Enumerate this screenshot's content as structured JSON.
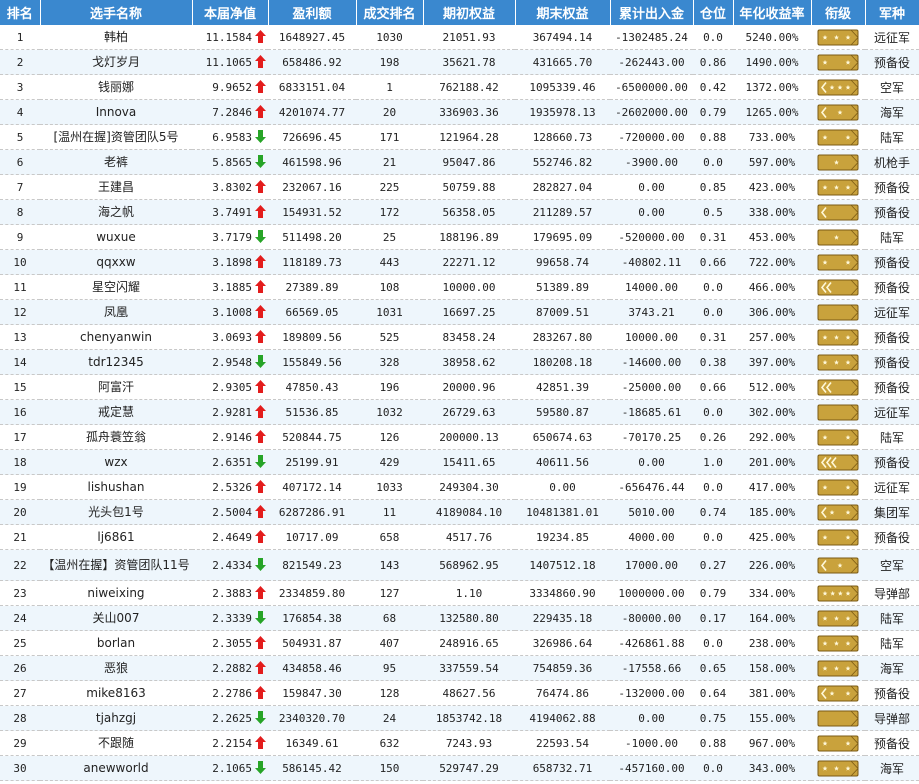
{
  "colors": {
    "header_bg": "#3a88cf",
    "up": "#e31c1c",
    "down": "#27a427",
    "badge_bg": "#c9a23c"
  },
  "header": [
    "排名",
    "选手名称",
    "本届净值",
    "盈利额",
    "成交排名",
    "期初权益",
    "期末权益",
    "累计出入金",
    "仓位",
    "年化收益率",
    "衔级",
    "军种"
  ],
  "rows": [
    {
      "rank": "1",
      "name": "韩柏",
      "nav": "11.1584",
      "trend": "up",
      "profit": "1648927.45",
      "trade_rank": "1030",
      "start": "21051.93",
      "end": "367494.14",
      "flow": "-1302485.24",
      "pos": "0.0",
      "annual": "5240.00%",
      "badge": "three-star",
      "branch": "远征军"
    },
    {
      "rank": "2",
      "name": "戈灯岁月",
      "nav": "11.1065",
      "trend": "up",
      "profit": "658486.92",
      "trade_rank": "198",
      "start": "35621.78",
      "end": "431665.70",
      "flow": "-262443.00",
      "pos": "0.86",
      "annual": "1490.00%",
      "badge": "two-star",
      "branch": "预备役"
    },
    {
      "rank": "3",
      "name": "钱丽娜",
      "nav": "9.9652",
      "trend": "up",
      "profit": "6833151.04",
      "trade_rank": "1",
      "start": "762188.42",
      "end": "1095339.46",
      "flow": "-6500000.00",
      "pos": "0.42",
      "annual": "1372.00%",
      "badge": "chevron-three-star",
      "branch": "空军"
    },
    {
      "rank": "4",
      "name": "Innova",
      "nav": "7.2846",
      "trend": "up",
      "profit": "4201074.77",
      "trade_rank": "20",
      "start": "336903.36",
      "end": "1935978.13",
      "flow": "-2602000.00",
      "pos": "0.79",
      "annual": "1265.00%",
      "badge": "chevron-one-star",
      "branch": "海军"
    },
    {
      "rank": "5",
      "name": "[温州在握]资管团队5号",
      "nav": "6.9583",
      "trend": "down",
      "profit": "726696.45",
      "trade_rank": "171",
      "start": "121964.28",
      "end": "128660.73",
      "flow": "-720000.00",
      "pos": "0.88",
      "annual": "733.00%",
      "badge": "two-star",
      "branch": "陆军"
    },
    {
      "rank": "6",
      "name": "老裤",
      "nav": "5.8565",
      "trend": "down",
      "profit": "461598.96",
      "trade_rank": "21",
      "start": "95047.86",
      "end": "552746.82",
      "flow": "-3900.00",
      "pos": "0.0",
      "annual": "597.00%",
      "badge": "one-star",
      "branch": "机枪手"
    },
    {
      "rank": "7",
      "name": "王建昌",
      "nav": "3.8302",
      "trend": "up",
      "profit": "232067.16",
      "trade_rank": "225",
      "start": "50759.88",
      "end": "282827.04",
      "flow": "0.00",
      "pos": "0.85",
      "annual": "423.00%",
      "badge": "three-star",
      "branch": "预备役"
    },
    {
      "rank": "8",
      "name": "海之帆",
      "nav": "3.7491",
      "trend": "up",
      "profit": "154931.52",
      "trade_rank": "172",
      "start": "56358.05",
      "end": "211289.57",
      "flow": "0.00",
      "pos": "0.5",
      "annual": "338.00%",
      "badge": "chevron",
      "branch": "预备役"
    },
    {
      "rank": "9",
      "name": "wuxue",
      "nav": "3.7179",
      "trend": "down",
      "profit": "511498.20",
      "trade_rank": "25",
      "start": "188196.89",
      "end": "179695.09",
      "flow": "-520000.00",
      "pos": "0.31",
      "annual": "453.00%",
      "badge": "one-star",
      "branch": "陆军"
    },
    {
      "rank": "10",
      "name": "qqxxw",
      "nav": "3.1898",
      "trend": "up",
      "profit": "118189.73",
      "trade_rank": "443",
      "start": "22271.12",
      "end": "99658.74",
      "flow": "-40802.11",
      "pos": "0.66",
      "annual": "722.00%",
      "badge": "two-star",
      "branch": "预备役"
    },
    {
      "rank": "11",
      "name": "星空闪耀",
      "nav": "3.1885",
      "trend": "up",
      "profit": "27389.89",
      "trade_rank": "108",
      "start": "10000.00",
      "end": "51389.89",
      "flow": "14000.00",
      "pos": "0.0",
      "annual": "466.00%",
      "badge": "double-chevron",
      "branch": "预备役"
    },
    {
      "rank": "12",
      "name": "凤凰",
      "nav": "3.1008",
      "trend": "up",
      "profit": "66569.05",
      "trade_rank": "1031",
      "start": "16697.25",
      "end": "87009.51",
      "flow": "3743.21",
      "pos": "0.0",
      "annual": "306.00%",
      "badge": "plain",
      "branch": "远征军"
    },
    {
      "rank": "13",
      "name": "chenyanwin",
      "nav": "3.0693",
      "trend": "up",
      "profit": "189809.56",
      "trade_rank": "525",
      "start": "83458.24",
      "end": "283267.80",
      "flow": "10000.00",
      "pos": "0.31",
      "annual": "257.00%",
      "badge": "three-star",
      "branch": "预备役"
    },
    {
      "rank": "14",
      "name": "tdr12345",
      "nav": "2.9548",
      "trend": "down",
      "profit": "155849.56",
      "trade_rank": "328",
      "start": "38958.62",
      "end": "180208.18",
      "flow": "-14600.00",
      "pos": "0.38",
      "annual": "397.00%",
      "badge": "three-star",
      "branch": "预备役"
    },
    {
      "rank": "15",
      "name": "阿富汗",
      "nav": "2.9305",
      "trend": "up",
      "profit": "47850.43",
      "trade_rank": "196",
      "start": "20000.96",
      "end": "42851.39",
      "flow": "-25000.00",
      "pos": "0.66",
      "annual": "512.00%",
      "badge": "double-chevron",
      "branch": "预备役"
    },
    {
      "rank": "16",
      "name": "戒定慧",
      "nav": "2.9281",
      "trend": "up",
      "profit": "51536.85",
      "trade_rank": "1032",
      "start": "26729.63",
      "end": "59580.87",
      "flow": "-18685.61",
      "pos": "0.0",
      "annual": "302.00%",
      "badge": "plain",
      "branch": "远征军"
    },
    {
      "rank": "17",
      "name": "孤舟蓑笠翁",
      "nav": "2.9146",
      "trend": "up",
      "profit": "520844.75",
      "trade_rank": "126",
      "start": "200000.13",
      "end": "650674.63",
      "flow": "-70170.25",
      "pos": "0.26",
      "annual": "292.00%",
      "badge": "two-star",
      "branch": "陆军"
    },
    {
      "rank": "18",
      "name": "wzx",
      "nav": "2.6351",
      "trend": "down",
      "profit": "25199.91",
      "trade_rank": "429",
      "start": "15411.65",
      "end": "40611.56",
      "flow": "0.00",
      "pos": "1.0",
      "annual": "201.00%",
      "badge": "triple-chevron",
      "branch": "预备役"
    },
    {
      "rank": "19",
      "name": "lishushan",
      "nav": "2.5326",
      "trend": "up",
      "profit": "407172.14",
      "trade_rank": "1033",
      "start": "249304.30",
      "end": "0.00",
      "flow": "-656476.44",
      "pos": "0.0",
      "annual": "417.00%",
      "badge": "two-star",
      "branch": "远征军"
    },
    {
      "rank": "20",
      "name": "光头包1号",
      "nav": "2.5004",
      "trend": "up",
      "profit": "6287286.91",
      "trade_rank": "11",
      "start": "4189084.10",
      "end": "10481381.01",
      "flow": "5010.00",
      "pos": "0.74",
      "annual": "185.00%",
      "badge": "chevron-two-star",
      "branch": "集团军"
    },
    {
      "rank": "21",
      "name": "lj6861",
      "nav": "2.4649",
      "trend": "up",
      "profit": "10717.09",
      "trade_rank": "658",
      "start": "4517.76",
      "end": "19234.85",
      "flow": "4000.00",
      "pos": "0.0",
      "annual": "425.00%",
      "badge": "two-star",
      "branch": "预备役"
    },
    {
      "rank": "22",
      "name": "【温州在握】资管团队11号",
      "nav": "2.4334",
      "trend": "down",
      "profit": "821549.23",
      "trade_rank": "143",
      "start": "568962.95",
      "end": "1407512.18",
      "flow": "17000.00",
      "pos": "0.27",
      "annual": "226.00%",
      "badge": "chevron-one-star",
      "branch": "空军"
    },
    {
      "rank": "23",
      "name": "niweixing",
      "nav": "2.3883",
      "trend": "up",
      "profit": "2334859.80",
      "trade_rank": "127",
      "start": "1.10",
      "end": "3334860.90",
      "flow": "1000000.00",
      "pos": "0.79",
      "annual": "334.00%",
      "badge": "four-star",
      "branch": "导弹部"
    },
    {
      "rank": "24",
      "name": "关山007",
      "nav": "2.3339",
      "trend": "down",
      "profit": "176854.38",
      "trade_rank": "68",
      "start": "132580.80",
      "end": "229435.18",
      "flow": "-80000.00",
      "pos": "0.17",
      "annual": "164.00%",
      "badge": "three-star",
      "branch": "陆军"
    },
    {
      "rank": "25",
      "name": "borlan",
      "nav": "2.3055",
      "trend": "up",
      "profit": "504931.87",
      "trade_rank": "407",
      "start": "248916.65",
      "end": "326986.64",
      "flow": "-426861.88",
      "pos": "0.0",
      "annual": "238.00%",
      "badge": "three-star",
      "branch": "陆军"
    },
    {
      "rank": "26",
      "name": "恶狼",
      "nav": "2.2882",
      "trend": "up",
      "profit": "434858.46",
      "trade_rank": "95",
      "start": "337559.54",
      "end": "754859.36",
      "flow": "-17558.66",
      "pos": "0.65",
      "annual": "158.00%",
      "badge": "three-star",
      "branch": "海军"
    },
    {
      "rank": "27",
      "name": "mike8163",
      "nav": "2.2786",
      "trend": "up",
      "profit": "159847.30",
      "trade_rank": "128",
      "start": "48627.56",
      "end": "76474.86",
      "flow": "-132000.00",
      "pos": "0.64",
      "annual": "381.00%",
      "badge": "chevron-two-star",
      "branch": "预备役"
    },
    {
      "rank": "28",
      "name": "tjahzgj",
      "nav": "2.2625",
      "trend": "down",
      "profit": "2340320.70",
      "trade_rank": "24",
      "start": "1853742.18",
      "end": "4194062.88",
      "flow": "0.00",
      "pos": "0.75",
      "annual": "155.00%",
      "badge": "plain",
      "branch": "导弹部"
    },
    {
      "rank": "29",
      "name": "不跟随",
      "nav": "2.2154",
      "trend": "up",
      "profit": "16349.61",
      "trade_rank": "632",
      "start": "7243.93",
      "end": "22593.54",
      "flow": "-1000.00",
      "pos": "0.88",
      "annual": "967.00%",
      "badge": "two-star",
      "branch": "预备役"
    },
    {
      "rank": "30",
      "name": "anewworld",
      "nav": "2.1065",
      "trend": "down",
      "profit": "586145.42",
      "trade_rank": "150",
      "start": "529747.29",
      "end": "658732.71",
      "flow": "-457160.00",
      "pos": "0.0",
      "annual": "343.00%",
      "badge": "three-star",
      "branch": "海军"
    }
  ]
}
